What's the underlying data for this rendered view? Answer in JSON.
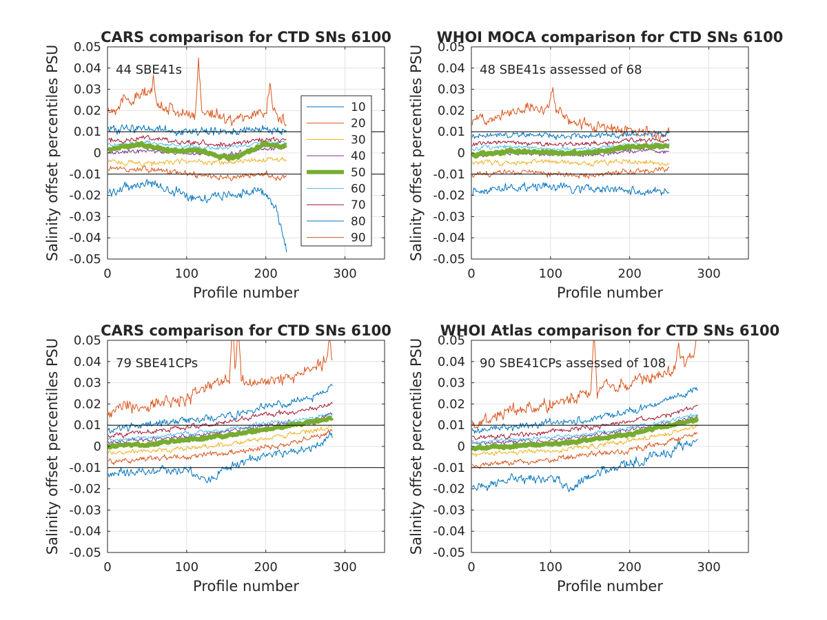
{
  "figure": {
    "background": "#ffffff",
    "axis_color": "#262626",
    "grid_color": "#dcdcdc",
    "threshold_color": "#000000"
  },
  "percentiles": [
    {
      "name": "10",
      "color": "#0072BD",
      "width": 1
    },
    {
      "name": "20",
      "color": "#D95319",
      "width": 1
    },
    {
      "name": "30",
      "color": "#EDB120",
      "width": 1
    },
    {
      "name": "40",
      "color": "#7E2F8E",
      "width": 1
    },
    {
      "name": "50",
      "color": "#77AC30",
      "width": 6
    },
    {
      "name": "60",
      "color": "#4DBEEE",
      "width": 1
    },
    {
      "name": "70",
      "color": "#A2142F",
      "width": 1
    },
    {
      "name": "80",
      "color": "#0072BD",
      "width": 1
    },
    {
      "name": "90",
      "color": "#D95319",
      "width": 1
    }
  ],
  "chart_data": [
    {
      "type": "line",
      "title": "CARS comparison for CTD SNs 6100",
      "annotation": "44 SBE41s",
      "xlabel": "Profile number",
      "ylabel": "Salinity offset percentiles PSU",
      "xlim": [
        0,
        350
      ],
      "ylim": [
        -0.05,
        0.05
      ],
      "xticks": [
        0,
        100,
        200,
        300
      ],
      "yticks": [
        -0.05,
        -0.04,
        -0.03,
        -0.02,
        -0.01,
        0,
        0.01,
        0.02,
        0.03,
        0.04,
        0.05
      ],
      "ytick_labels": [
        "-0.05",
        "-0.04",
        "-0.03",
        "-0.02",
        "-0.01",
        "0",
        "0.01",
        "0.02",
        "0.03",
        "0.04",
        "0.05"
      ],
      "hlines": [
        -0.01,
        0.01
      ],
      "grid": true,
      "legend": true,
      "legend_position": "right",
      "n_profiles": 226,
      "series": [
        {
          "name": "10",
          "x": [
            1,
            25,
            50,
            75,
            100,
            125,
            150,
            175,
            200,
            215,
            226
          ],
          "y": [
            -0.019,
            -0.016,
            -0.014,
            -0.017,
            -0.02,
            -0.021,
            -0.02,
            -0.019,
            -0.018,
            -0.028,
            -0.046
          ],
          "noise": 0.0032
        },
        {
          "name": "20",
          "x": [
            1,
            25,
            50,
            75,
            100,
            125,
            150,
            175,
            200,
            215,
            226
          ],
          "y": [
            0.02,
            0.025,
            0.028,
            0.022,
            0.017,
            0.02,
            0.016,
            0.017,
            0.02,
            0.018,
            0.014
          ],
          "noise": 0.0045,
          "spikes": [
            [
              115,
              0.045
            ],
            [
              58,
              0.033
            ],
            [
              205,
              0.034
            ]
          ]
        },
        {
          "name": "30",
          "x": [
            1,
            50,
            100,
            150,
            200,
            226
          ],
          "y": [
            -0.004,
            -0.005,
            -0.004,
            -0.005,
            -0.003,
            -0.003
          ],
          "noise": 0.0018
        },
        {
          "name": "40",
          "x": [
            1,
            50,
            100,
            150,
            200,
            226
          ],
          "y": [
            0.0,
            0.001,
            0.0,
            -0.001,
            0.002,
            0.002
          ],
          "noise": 0.0015
        },
        {
          "name": "50",
          "x": [
            1,
            40,
            80,
            120,
            140,
            160,
            200,
            226
          ],
          "y": [
            0.002,
            0.004,
            0.001,
            0.001,
            -0.002,
            -0.002,
            0.004,
            0.003
          ],
          "noise": 0.0012
        },
        {
          "name": "60",
          "x": [
            1,
            50,
            100,
            150,
            200,
            226
          ],
          "y": [
            0.004,
            0.005,
            0.003,
            0.002,
            0.005,
            0.005
          ],
          "noise": 0.0015
        },
        {
          "name": "70",
          "x": [
            1,
            50,
            100,
            150,
            200,
            226
          ],
          "y": [
            0.006,
            0.007,
            0.005,
            0.004,
            0.006,
            0.006
          ],
          "noise": 0.0018
        },
        {
          "name": "80",
          "x": [
            1,
            50,
            100,
            150,
            200,
            226
          ],
          "y": [
            0.011,
            0.012,
            0.01,
            0.01,
            0.011,
            0.01
          ],
          "noise": 0.003
        },
        {
          "name": "90",
          "x": [
            1,
            50,
            100,
            150,
            200,
            226
          ],
          "y": [
            -0.008,
            -0.008,
            -0.01,
            -0.012,
            -0.01,
            -0.012
          ],
          "noise": 0.0022
        }
      ]
    },
    {
      "type": "line",
      "title": "WHOI MOCA comparison for CTD SNs 6100",
      "annotation": "48 SBE41s assessed of 68",
      "xlabel": "Profile number",
      "ylabel": "Salinity offset percentiles PSU",
      "xlim": [
        0,
        350
      ],
      "ylim": [
        -0.05,
        0.05
      ],
      "xticks": [
        0,
        100,
        200,
        300
      ],
      "yticks": [
        -0.05,
        -0.04,
        -0.03,
        -0.02,
        -0.01,
        0,
        0.01,
        0.02,
        0.03,
        0.04,
        0.05
      ],
      "ytick_labels": [
        "-0.05",
        "-0.04",
        "-0.03",
        "-0.02",
        "-0.01",
        "0",
        "0.01",
        "0.02",
        "0.03",
        "0.04",
        "0.05"
      ],
      "hlines": [
        -0.01,
        0.01
      ],
      "grid": true,
      "legend": false,
      "n_profiles": 250,
      "series": [
        {
          "name": "10",
          "x": [
            1,
            50,
            100,
            150,
            200,
            250
          ],
          "y": [
            -0.018,
            -0.016,
            -0.016,
            -0.017,
            -0.018,
            -0.019
          ],
          "noise": 0.003
        },
        {
          "name": "20",
          "x": [
            1,
            50,
            100,
            130,
            200,
            250
          ],
          "y": [
            0.015,
            0.02,
            0.022,
            0.014,
            0.01,
            0.008
          ],
          "noise": 0.004,
          "spikes": [
            [
              103,
              0.033
            ]
          ]
        },
        {
          "name": "30",
          "x": [
            1,
            50,
            100,
            150,
            200,
            250
          ],
          "y": [
            -0.004,
            -0.005,
            -0.004,
            -0.005,
            -0.004,
            -0.005
          ],
          "noise": 0.0018
        },
        {
          "name": "40",
          "x": [
            1,
            50,
            100,
            150,
            200,
            250
          ],
          "y": [
            -0.001,
            0.0,
            -0.001,
            -0.001,
            0.001,
            0.001
          ],
          "noise": 0.0014
        },
        {
          "name": "50",
          "x": [
            1,
            50,
            100,
            150,
            200,
            250
          ],
          "y": [
            -0.001,
            0.001,
            0.0,
            0.0,
            0.003,
            0.003
          ],
          "noise": 0.0011
        },
        {
          "name": "60",
          "x": [
            1,
            50,
            100,
            150,
            200,
            250
          ],
          "y": [
            0.002,
            0.003,
            0.002,
            0.002,
            0.004,
            0.004
          ],
          "noise": 0.0014
        },
        {
          "name": "70",
          "x": [
            1,
            50,
            100,
            150,
            200,
            250
          ],
          "y": [
            0.004,
            0.005,
            0.004,
            0.004,
            0.006,
            0.006
          ],
          "noise": 0.0016
        },
        {
          "name": "80",
          "x": [
            1,
            50,
            100,
            150,
            200,
            250
          ],
          "y": [
            0.008,
            0.009,
            0.008,
            0.008,
            0.009,
            0.009
          ],
          "noise": 0.0022
        },
        {
          "name": "90",
          "x": [
            1,
            50,
            100,
            150,
            200,
            250
          ],
          "y": [
            -0.01,
            -0.009,
            -0.01,
            -0.011,
            -0.009,
            -0.007
          ],
          "noise": 0.002
        }
      ]
    },
    {
      "type": "line",
      "title": "CARS comparison for CTD SNs 6100",
      "annotation": "79 SBE41CPs",
      "xlabel": "Profile number",
      "ylabel": "Salinity offset percentiles PSU",
      "xlim": [
        0,
        350
      ],
      "ylim": [
        -0.05,
        0.05
      ],
      "xticks": [
        0,
        100,
        200,
        300
      ],
      "yticks": [
        -0.05,
        -0.04,
        -0.03,
        -0.02,
        -0.01,
        0,
        0.01,
        0.02,
        0.03,
        0.04,
        0.05
      ],
      "ytick_labels": [
        "-0.05",
        "-0.04",
        "-0.03",
        "-0.02",
        "-0.01",
        "0",
        "0.01",
        "0.02",
        "0.03",
        "0.04",
        "0.05"
      ],
      "hlines": [
        -0.01,
        0.01
      ],
      "grid": true,
      "legend": false,
      "n_profiles": 284,
      "series": [
        {
          "name": "10",
          "x": [
            1,
            50,
            100,
            130,
            150,
            200,
            250,
            284
          ],
          "y": [
            -0.013,
            -0.012,
            -0.011,
            -0.016,
            -0.01,
            -0.004,
            -0.002,
            0.005
          ],
          "noise": 0.0028
        },
        {
          "name": "20",
          "x": [
            1,
            50,
            100,
            150,
            200,
            250,
            284
          ],
          "y": [
            0.016,
            0.02,
            0.022,
            0.032,
            0.03,
            0.034,
            0.042
          ],
          "noise": 0.0045,
          "spikes": [
            [
              158,
              0.06
            ],
            [
              165,
              0.055
            ],
            [
              280,
              0.05
            ]
          ]
        },
        {
          "name": "30",
          "x": [
            1,
            50,
            100,
            150,
            200,
            250,
            284
          ],
          "y": [
            -0.003,
            -0.002,
            -0.001,
            0.001,
            0.004,
            0.007,
            0.009
          ],
          "noise": 0.0016
        },
        {
          "name": "40",
          "x": [
            1,
            50,
            100,
            150,
            200,
            250,
            284
          ],
          "y": [
            0.002,
            0.003,
            0.005,
            0.007,
            0.01,
            0.012,
            0.015
          ],
          "noise": 0.0016
        },
        {
          "name": "50",
          "x": [
            1,
            50,
            100,
            150,
            200,
            250,
            284
          ],
          "y": [
            0.0,
            0.001,
            0.003,
            0.005,
            0.008,
            0.011,
            0.013
          ],
          "noise": 0.001
        },
        {
          "name": "60",
          "x": [
            1,
            50,
            100,
            150,
            200,
            250,
            284
          ],
          "y": [
            0.003,
            0.004,
            0.006,
            0.008,
            0.011,
            0.013,
            0.015
          ],
          "noise": 0.0014
        },
        {
          "name": "70",
          "x": [
            1,
            50,
            100,
            150,
            200,
            250,
            284
          ],
          "y": [
            0.005,
            0.007,
            0.009,
            0.011,
            0.015,
            0.017,
            0.02
          ],
          "noise": 0.0018
        },
        {
          "name": "80",
          "x": [
            1,
            50,
            100,
            150,
            200,
            250,
            284
          ],
          "y": [
            0.008,
            0.01,
            0.012,
            0.014,
            0.019,
            0.022,
            0.028
          ],
          "noise": 0.0026
        },
        {
          "name": "90",
          "x": [
            1,
            50,
            100,
            150,
            200,
            250,
            284
          ],
          "y": [
            -0.007,
            -0.006,
            -0.005,
            -0.003,
            -0.001,
            0.003,
            0.007
          ],
          "noise": 0.002
        }
      ]
    },
    {
      "type": "line",
      "title": "WHOI Atlas comparison for CTD SNs 6100",
      "annotation": "90 SBE41CPs assessed of 108",
      "xlabel": "Profile number",
      "ylabel": "Salinity offset percentiles PSU",
      "xlim": [
        0,
        350
      ],
      "ylim": [
        -0.05,
        0.05
      ],
      "xticks": [
        0,
        100,
        200,
        300
      ],
      "yticks": [
        -0.05,
        -0.04,
        -0.03,
        -0.02,
        -0.01,
        0,
        0.01,
        0.02,
        0.03,
        0.04,
        0.05
      ],
      "ytick_labels": [
        "-0.05",
        "-0.04",
        "-0.03",
        "-0.02",
        "-0.01",
        "0",
        "0.01",
        "0.02",
        "0.03",
        "0.04",
        "0.05"
      ],
      "hlines": [
        -0.01,
        0.01
      ],
      "grid": true,
      "legend": false,
      "n_profiles": 286,
      "series": [
        {
          "name": "10",
          "x": [
            1,
            50,
            100,
            125,
            150,
            200,
            250,
            286
          ],
          "y": [
            -0.02,
            -0.016,
            -0.015,
            -0.02,
            -0.013,
            -0.008,
            -0.003,
            0.004
          ],
          "noise": 0.0032
        },
        {
          "name": "20",
          "x": [
            1,
            50,
            100,
            150,
            200,
            250,
            286
          ],
          "y": [
            0.01,
            0.016,
            0.02,
            0.026,
            0.03,
            0.035,
            0.045
          ],
          "noise": 0.0045,
          "spikes": [
            [
              155,
              0.056
            ],
            [
              262,
              0.05
            ],
            [
              285,
              0.055
            ]
          ]
        },
        {
          "name": "30",
          "x": [
            1,
            50,
            100,
            150,
            200,
            250,
            286
          ],
          "y": [
            -0.004,
            -0.003,
            -0.002,
            0.0,
            0.003,
            0.006,
            0.01
          ],
          "noise": 0.0016
        },
        {
          "name": "40",
          "x": [
            1,
            50,
            100,
            150,
            200,
            250,
            286
          ],
          "y": [
            0.001,
            0.002,
            0.003,
            0.005,
            0.008,
            0.011,
            0.014
          ],
          "noise": 0.0014
        },
        {
          "name": "50",
          "x": [
            1,
            50,
            100,
            150,
            200,
            250,
            286
          ],
          "y": [
            -0.001,
            0.0,
            0.001,
            0.003,
            0.006,
            0.01,
            0.013
          ],
          "noise": 0.001
        },
        {
          "name": "60",
          "x": [
            1,
            50,
            100,
            150,
            200,
            250,
            286
          ],
          "y": [
            0.002,
            0.003,
            0.004,
            0.006,
            0.009,
            0.012,
            0.015
          ],
          "noise": 0.0013
        },
        {
          "name": "70",
          "x": [
            1,
            50,
            100,
            150,
            200,
            250,
            286
          ],
          "y": [
            0.004,
            0.005,
            0.007,
            0.009,
            0.012,
            0.015,
            0.019
          ],
          "noise": 0.0016
        },
        {
          "name": "80",
          "x": [
            1,
            50,
            100,
            150,
            200,
            250,
            286
          ],
          "y": [
            0.007,
            0.009,
            0.011,
            0.013,
            0.017,
            0.022,
            0.027
          ],
          "noise": 0.0025
        },
        {
          "name": "90",
          "x": [
            1,
            50,
            100,
            150,
            200,
            250,
            286
          ],
          "y": [
            -0.009,
            -0.008,
            -0.006,
            -0.004,
            -0.002,
            0.002,
            0.006
          ],
          "noise": 0.002
        }
      ]
    }
  ]
}
